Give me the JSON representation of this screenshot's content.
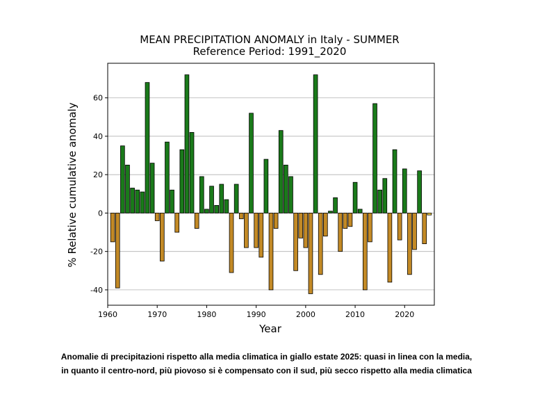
{
  "chart_data": {
    "type": "bar",
    "title": "MEAN PRECIPITATION ANOMALY in Italy - SUMMER",
    "subtitle": "Reference Period: 1991_2020",
    "xlabel": "Year",
    "ylabel": "% Relative cumulative anomaly",
    "xlim": [
      1960,
      2026
    ],
    "ylim": [
      -48,
      78
    ],
    "xticks": [
      1960,
      1970,
      1980,
      1990,
      2000,
      2010,
      2020
    ],
    "yticks": [
      -40,
      -20,
      0,
      20,
      40,
      60
    ],
    "grid": "horizontal",
    "colors": {
      "positive": "#1a7a1a",
      "negative": "#c38a26",
      "highlight": "#f2d24a",
      "edge": "#000000"
    },
    "x": [
      1961,
      1962,
      1963,
      1964,
      1965,
      1966,
      1967,
      1968,
      1969,
      1970,
      1971,
      1972,
      1973,
      1974,
      1975,
      1976,
      1977,
      1978,
      1979,
      1980,
      1981,
      1982,
      1983,
      1984,
      1985,
      1986,
      1987,
      1988,
      1989,
      1990,
      1991,
      1992,
      1993,
      1994,
      1995,
      1996,
      1997,
      1998,
      1999,
      2000,
      2001,
      2002,
      2003,
      2004,
      2005,
      2006,
      2007,
      2008,
      2009,
      2010,
      2011,
      2012,
      2013,
      2014,
      2015,
      2016,
      2017,
      2018,
      2019,
      2020,
      2021,
      2022,
      2023,
      2024,
      2025
    ],
    "values": [
      -15,
      -39,
      35,
      25,
      13,
      12,
      11,
      68,
      26,
      -4,
      -25,
      37,
      12,
      -10,
      33,
      72,
      42,
      -8,
      19,
      2,
      14,
      4,
      15,
      7,
      -31,
      15,
      -3,
      -18,
      52,
      -18,
      -23,
      28,
      -40,
      -8,
      43,
      25,
      19,
      -30,
      -13,
      -18,
      -42,
      72,
      -32,
      -12,
      1,
      8,
      -20,
      -8,
      -7,
      16,
      2,
      -40,
      -15,
      57,
      12,
      18,
      -36,
      33,
      -14,
      23,
      -32,
      -19,
      22,
      -16,
      -1
    ],
    "highlight_year": 2025
  },
  "caption": {
    "line1": "Anomalie di precipitazioni rispetto alla media climatica in giallo estate 2025: quasi in linea con la media,",
    "line2": "in quanto il centro-nord, più piovoso si è compensato con il sud, più secco rispetto alla media climatica"
  }
}
